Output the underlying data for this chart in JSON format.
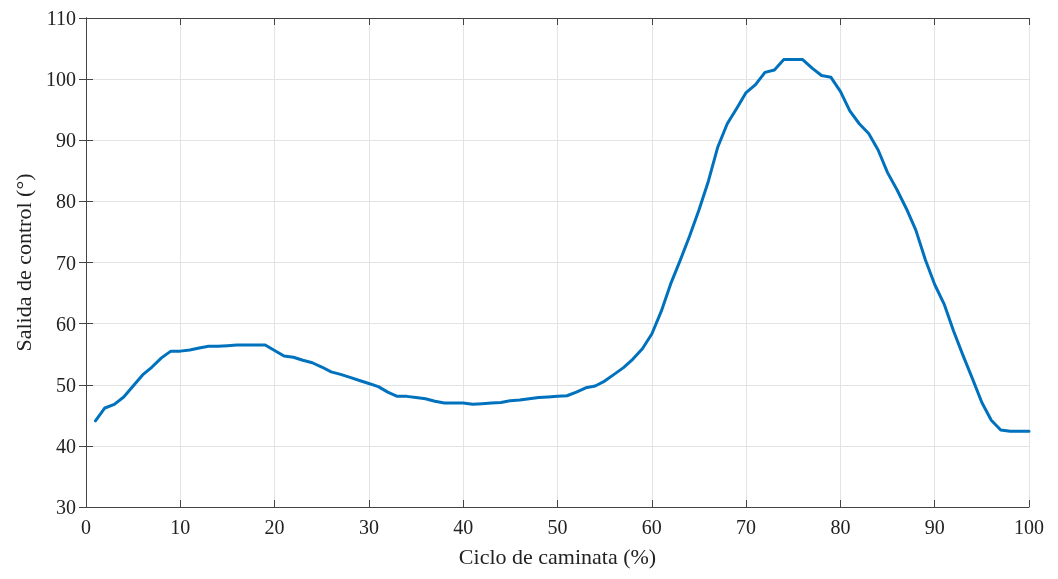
{
  "chart_data": {
    "type": "line",
    "xlabel": "Ciclo de caminata (%)",
    "ylabel": "Salida de control (°)",
    "x": [
      1,
      2,
      3,
      4,
      5,
      6,
      7,
      8,
      9,
      10,
      11,
      12,
      13,
      14,
      15,
      16,
      17,
      18,
      19,
      20,
      21,
      22,
      23,
      24,
      25,
      26,
      27,
      28,
      29,
      30,
      31,
      32,
      33,
      34,
      35,
      36,
      37,
      38,
      39,
      40,
      41,
      42,
      43,
      44,
      45,
      46,
      47,
      48,
      49,
      50,
      51,
      52,
      53,
      54,
      55,
      56,
      57,
      58,
      59,
      60,
      61,
      62,
      63,
      64,
      65,
      66,
      67,
      68,
      69,
      70,
      71,
      72,
      73,
      74,
      75,
      76,
      77,
      78,
      79,
      80,
      81,
      82,
      83,
      84,
      85,
      86,
      87,
      88,
      89,
      90,
      91,
      92,
      93,
      94,
      95,
      96,
      97,
      98,
      99,
      100
    ],
    "series": [
      {
        "color": "#0072bd",
        "values": [
          44.1,
          46.2,
          46.8,
          48,
          49.8,
          51.6,
          52.9,
          54.4,
          55.5,
          55.5,
          55.7,
          56,
          56.3,
          56.3,
          56.4,
          56.5,
          56.5,
          56.5,
          56.5,
          55.6,
          54.7,
          54.5,
          54,
          53.6,
          52.9,
          52.1,
          51.7,
          51.2,
          50.7,
          50.2,
          49.7,
          48.8,
          48.1,
          48.1,
          47.9,
          47.7,
          47.3,
          47,
          47,
          47,
          46.8,
          46.9,
          47,
          47.1,
          47.4,
          47.5,
          47.7,
          47.9,
          48,
          48.1,
          48.2,
          48.8,
          49.5,
          49.8,
          50.6,
          51.7,
          52.8,
          54.2,
          55.9,
          58.3,
          62,
          66.5,
          70.3,
          74.3,
          78.6,
          83.3,
          88.9,
          92.7,
          95.2,
          97.8,
          99.1,
          101.1,
          101.5,
          103.2,
          103.2,
          103.2,
          101.8,
          100.6,
          100.3,
          98,
          94.8,
          92.7,
          91.1,
          88.4,
          84.7,
          81.9,
          78.8,
          75.3,
          70.5,
          66.4,
          63.2,
          58.8,
          54.8,
          51,
          47.1,
          44.2,
          42.6,
          42.4,
          42.4,
          42.4
        ]
      }
    ],
    "xlim": [
      0,
      100
    ],
    "xticks": [
      0,
      10,
      20,
      30,
      40,
      50,
      60,
      70,
      80,
      90,
      100
    ],
    "ylim": [
      30,
      110
    ],
    "yticks": [
      30,
      40,
      50,
      60,
      70,
      80,
      90,
      100,
      110
    ],
    "grid": true,
    "marker": "none",
    "line_style": "solid"
  }
}
